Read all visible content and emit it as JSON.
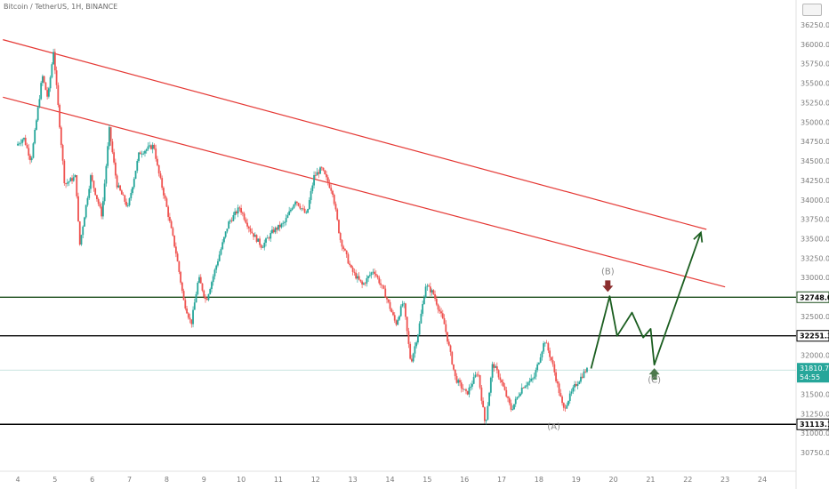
{
  "header": {
    "title": "Bitcoin / TetherUS, 1H, BINANCE"
  },
  "chart_data": {
    "type": "candlestick",
    "symbol": "Bitcoin / TetherUS",
    "interval": "1H",
    "exchange": "BINANCE",
    "x_ticks": [
      "4",
      "5",
      "6",
      "7",
      "8",
      "9",
      "10",
      "11",
      "12",
      "13",
      "14",
      "15",
      "16",
      "17",
      "18",
      "19",
      "20",
      "21",
      "22",
      "23",
      "24"
    ],
    "y_ticks": [
      "30750.00",
      "31000.00",
      "31250.00",
      "31500.00",
      "31750.00",
      "32000.00",
      "32250.00",
      "32500.00",
      "32750.00",
      "33000.00",
      "33250.00",
      "33500.00",
      "33750.00",
      "34000.00",
      "34250.00",
      "34500.00",
      "34750.00",
      "35000.00",
      "35250.00",
      "35500.00",
      "35750.00",
      "36000.00",
      "36250.00"
    ],
    "ylim": [
      30600,
      36300
    ],
    "price_path": [
      {
        "day": 4.0,
        "price": 34700
      },
      {
        "day": 4.2,
        "price": 34800
      },
      {
        "day": 4.4,
        "price": 34500
      },
      {
        "day": 4.7,
        "price": 35600
      },
      {
        "day": 4.85,
        "price": 35300
      },
      {
        "day": 5.0,
        "price": 35920
      },
      {
        "day": 5.3,
        "price": 34200
      },
      {
        "day": 5.6,
        "price": 34300
      },
      {
        "day": 5.7,
        "price": 33400
      },
      {
        "day": 6.0,
        "price": 34300
      },
      {
        "day": 6.3,
        "price": 33800
      },
      {
        "day": 6.5,
        "price": 34900
      },
      {
        "day": 6.7,
        "price": 34200
      },
      {
        "day": 7.0,
        "price": 33900
      },
      {
        "day": 7.3,
        "price": 34600
      },
      {
        "day": 7.7,
        "price": 34700
      },
      {
        "day": 7.8,
        "price": 34400
      },
      {
        "day": 8.0,
        "price": 34000
      },
      {
        "day": 8.3,
        "price": 33300
      },
      {
        "day": 8.5,
        "price": 32700
      },
      {
        "day": 8.7,
        "price": 32400
      },
      {
        "day": 8.9,
        "price": 33000
      },
      {
        "day": 9.1,
        "price": 32700
      },
      {
        "day": 9.4,
        "price": 33200
      },
      {
        "day": 9.7,
        "price": 33700
      },
      {
        "day": 10.0,
        "price": 33900
      },
      {
        "day": 10.3,
        "price": 33600
      },
      {
        "day": 10.6,
        "price": 33400
      },
      {
        "day": 10.9,
        "price": 33600
      },
      {
        "day": 11.2,
        "price": 33700
      },
      {
        "day": 11.5,
        "price": 34000
      },
      {
        "day": 11.8,
        "price": 33800
      },
      {
        "day": 12.0,
        "price": 34300
      },
      {
        "day": 12.2,
        "price": 34400
      },
      {
        "day": 12.5,
        "price": 34100
      },
      {
        "day": 12.7,
        "price": 33500
      },
      {
        "day": 13.0,
        "price": 33100
      },
      {
        "day": 13.3,
        "price": 32900
      },
      {
        "day": 13.6,
        "price": 33100
      },
      {
        "day": 13.9,
        "price": 32800
      },
      {
        "day": 14.2,
        "price": 32400
      },
      {
        "day": 14.4,
        "price": 32700
      },
      {
        "day": 14.6,
        "price": 31900
      },
      {
        "day": 14.8,
        "price": 32300
      },
      {
        "day": 15.0,
        "price": 32900
      },
      {
        "day": 15.2,
        "price": 32800
      },
      {
        "day": 15.5,
        "price": 32400
      },
      {
        "day": 15.8,
        "price": 31700
      },
      {
        "day": 16.1,
        "price": 31500
      },
      {
        "day": 16.4,
        "price": 31800
      },
      {
        "day": 16.6,
        "price": 31100
      },
      {
        "day": 16.8,
        "price": 31900
      },
      {
        "day": 17.0,
        "price": 31700
      },
      {
        "day": 17.3,
        "price": 31300
      },
      {
        "day": 17.6,
        "price": 31600
      },
      {
        "day": 17.9,
        "price": 31700
      },
      {
        "day": 18.2,
        "price": 32200
      },
      {
        "day": 18.4,
        "price": 31900
      },
      {
        "day": 18.7,
        "price": 31300
      },
      {
        "day": 19.0,
        "price": 31600
      },
      {
        "day": 19.3,
        "price": 31810
      }
    ],
    "horizontal_levels": [
      {
        "price": 32748.03,
        "label": "32748.03",
        "color": "#1b4d1b"
      },
      {
        "price": 32251.3,
        "label": "32251.30",
        "color": "#000000"
      },
      {
        "price": 31113.17,
        "label": "31113.17",
        "color": "#000000"
      }
    ],
    "current_price": {
      "price": 31810.76,
      "label": "31810.76",
      "countdown": "54:55",
      "color": "#26a69a"
    },
    "trendlines": [
      {
        "from": {
          "day": 3.6,
          "price": 36060
        },
        "to": {
          "day": 22.5,
          "price": 33620
        },
        "color": "#e53935"
      },
      {
        "from": {
          "day": 3.6,
          "price": 35320
        },
        "to": {
          "day": 23.0,
          "price": 32880
        },
        "color": "#e53935"
      }
    ],
    "projection_path": [
      {
        "day": 19.4,
        "price": 31830
      },
      {
        "day": 19.9,
        "price": 32760
      },
      {
        "day": 20.1,
        "price": 32250
      },
      {
        "day": 20.5,
        "price": 32550
      },
      {
        "day": 20.8,
        "price": 32230
      },
      {
        "day": 21.0,
        "price": 32340
      },
      {
        "day": 21.1,
        "price": 31880
      },
      {
        "day": 22.35,
        "price": 33580
      }
    ],
    "projection_color": "#1b5e20",
    "wave_labels": [
      {
        "label": "(A)",
        "day": 18.4,
        "price": 31050
      },
      {
        "label": "(B)",
        "day": 19.85,
        "price": 33040
      },
      {
        "label": "(C)",
        "day": 21.1,
        "price": 31650
      }
    ],
    "markers": [
      {
        "type": "arrow-down",
        "day": 19.85,
        "price": 32850,
        "color": "#8b2e2e"
      },
      {
        "type": "arrow-up",
        "day": 21.1,
        "price": 31800,
        "color": "#4c7a4c"
      }
    ],
    "colors": {
      "up": "#26a69a",
      "down": "#ef5350",
      "background": "#ffffff"
    }
  }
}
